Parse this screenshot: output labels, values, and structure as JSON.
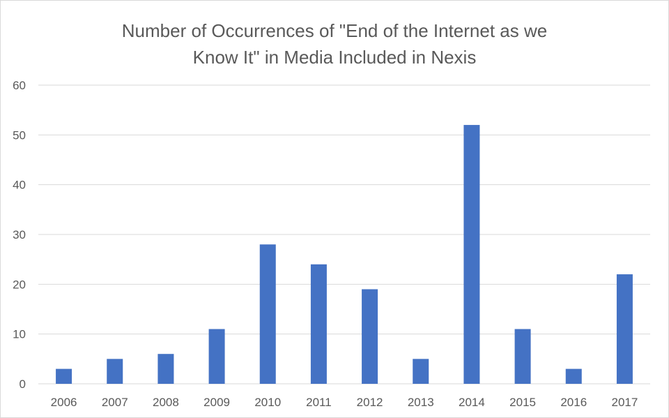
{
  "chart_data": {
    "type": "bar",
    "title_lines": [
      "Number of Occurrences of \"End of the Internet as we",
      "Know It\" in Media Included in Nexis"
    ],
    "categories": [
      "2006",
      "2007",
      "2008",
      "2009",
      "2010",
      "2011",
      "2012",
      "2013",
      "2014",
      "2015",
      "2016",
      "2017"
    ],
    "values": [
      3,
      5,
      6,
      11,
      28,
      24,
      19,
      5,
      52,
      11,
      3,
      22
    ],
    "ylim": [
      0,
      60
    ],
    "yticks": [
      "0",
      "10",
      "20",
      "30",
      "40",
      "50",
      "60"
    ],
    "xlabel": "",
    "ylabel": "",
    "grid": true,
    "legend": "none",
    "bar_color": "#4472c4",
    "grid_color": "#d9d9d9"
  }
}
